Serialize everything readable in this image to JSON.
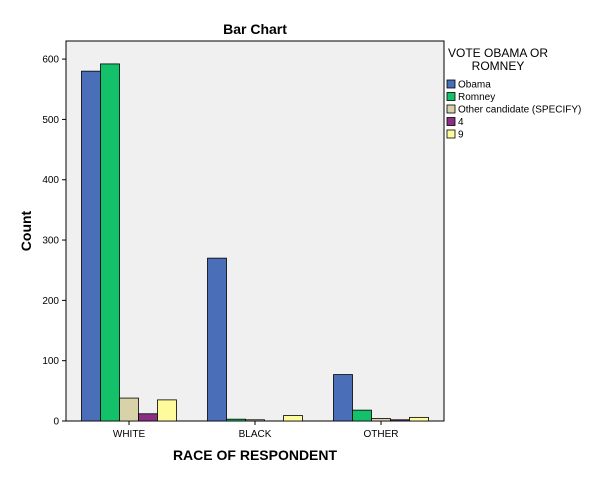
{
  "chart_data": {
    "type": "bar",
    "title": "Bar Chart",
    "xlabel": "RACE OF RESPONDENT",
    "ylabel": "Count",
    "categories": [
      "WHITE",
      "BLACK",
      "OTHER"
    ],
    "ylim": [
      0,
      630
    ],
    "yticks": [
      0,
      100,
      200,
      300,
      400,
      500,
      600
    ],
    "grid": false,
    "legend": {
      "title_lines": [
        "VOTE OBAMA OR",
        "ROMNEY"
      ],
      "placement": "right"
    },
    "series": [
      {
        "name": "Obama",
        "color": "#4a6fb8",
        "values": [
          580,
          270,
          77
        ]
      },
      {
        "name": "Romney",
        "color": "#13c16a",
        "values": [
          592,
          3,
          18
        ]
      },
      {
        "name": "Other candidate (SPECIFY)",
        "color": "#d9d2a8",
        "values": [
          38,
          2,
          4
        ]
      },
      {
        "name": "4",
        "color": "#8a2f83",
        "values": [
          12,
          0,
          2
        ]
      },
      {
        "name": "9",
        "color": "#fdfb9b",
        "values": [
          35,
          9,
          6
        ]
      }
    ]
  }
}
